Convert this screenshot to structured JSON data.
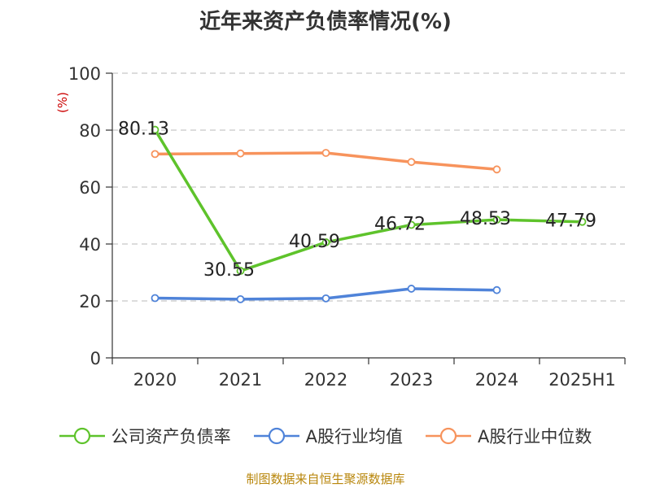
{
  "title": "近年来资产负债率情况(%)",
  "source": "制图数据来自恒生聚源数据库",
  "chart_data": {
    "type": "line",
    "categories": [
      "2020",
      "2021",
      "2022",
      "2023",
      "2024",
      "2025H1"
    ],
    "ylabel": "(%)",
    "ylim": [
      0,
      100
    ],
    "yticks": [
      "0",
      "20",
      "40",
      "60",
      "80",
      "100"
    ],
    "grid": true,
    "legend_position": "bottom",
    "series": [
      {
        "name": "公司资产负债率",
        "color": "#5ec32b",
        "values": [
          80.13,
          30.55,
          40.59,
          46.72,
          48.53,
          47.79
        ],
        "labels": [
          "80.13",
          "30.55",
          "40.59",
          "46.72",
          "48.53",
          "47.79"
        ]
      },
      {
        "name": "A股行业均值",
        "color": "#4f83d9",
        "values": [
          21.0,
          20.6,
          20.9,
          24.3,
          23.8,
          null
        ]
      },
      {
        "name": "A股行业中位数",
        "color": "#f7935c",
        "values": [
          71.6,
          71.8,
          72.0,
          68.8,
          66.2,
          null
        ]
      }
    ]
  }
}
